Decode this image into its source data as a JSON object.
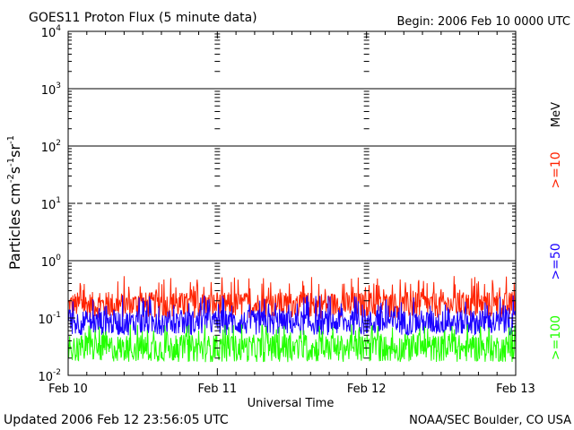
{
  "header": {
    "title": "GOES11 Proton Flux (5 minute data)",
    "begin": "Begin: 2006 Feb 10 0000 UTC"
  },
  "footer": {
    "updated": "Updated 2006 Feb 12 23:56:05 UTC",
    "credit": "NOAA/SEC Boulder, CO USA"
  },
  "chart_data": {
    "type": "line",
    "title": "GOES11 Proton Flux (5 minute data)",
    "xlabel": "Universal Time",
    "ylabel": "Particles cm⁻²s⁻¹sr⁻¹",
    "x_ticks": [
      "Feb 10",
      "Feb 11",
      "Feb 12",
      "Feb 13"
    ],
    "y_scale": "log",
    "ylim": [
      0.01,
      10000
    ],
    "y_ticks": [
      {
        "base": "10",
        "exp": "-2",
        "value": 0.01
      },
      {
        "base": "10",
        "exp": "-1",
        "value": 0.1
      },
      {
        "base": "10",
        "exp": "0",
        "value": 1
      },
      {
        "base": "10",
        "exp": "1",
        "value": 10
      },
      {
        "base": "10",
        "exp": "2",
        "value": 100
      },
      {
        "base": "10",
        "exp": "3",
        "value": 1000
      },
      {
        "base": "10",
        "exp": "4",
        "value": 10000
      }
    ],
    "threshold_lines": [
      {
        "value": 1,
        "style": "solid"
      },
      {
        "value": 10,
        "style": "dashed"
      },
      {
        "value": 100,
        "style": "solid"
      },
      {
        "value": 1000,
        "style": "solid"
      }
    ],
    "unit_label": "MeV",
    "series": [
      {
        "name": ">=10",
        "color": "#ff2200",
        "typical": 0.2,
        "range": [
          0.1,
          0.55
        ]
      },
      {
        "name": ">=50",
        "color": "#1a00ff",
        "typical": 0.1,
        "range": [
          0.05,
          0.25
        ]
      },
      {
        "name": ">=100",
        "color": "#22ff00",
        "typical": 0.04,
        "range": [
          0.017,
          0.08
        ]
      }
    ]
  }
}
